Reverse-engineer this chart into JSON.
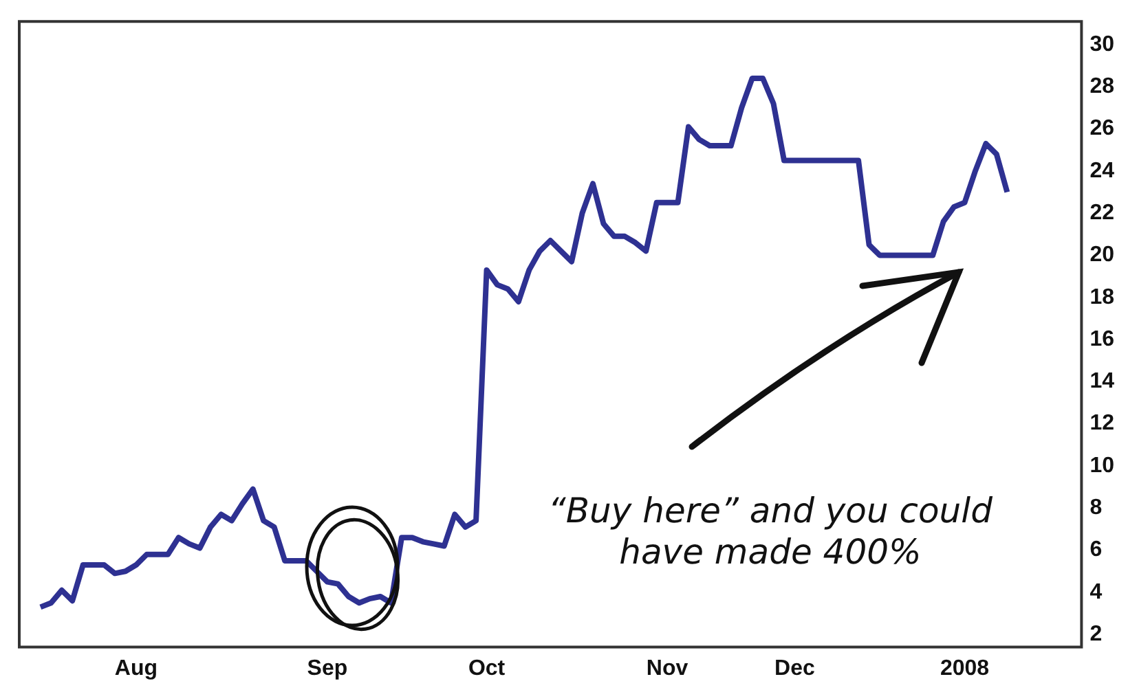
{
  "chart_data": {
    "type": "line",
    "categories": [
      null,
      null,
      null,
      null,
      null,
      null,
      null,
      null,
      null,
      null,
      null,
      "Aug",
      null,
      null,
      null,
      null,
      null,
      null,
      null,
      null,
      null,
      null,
      null,
      null,
      null,
      null,
      null,
      null,
      null,
      "Sep",
      null,
      null,
      null,
      null,
      null,
      null,
      null,
      null,
      null,
      null,
      null,
      null,
      null,
      null,
      "Oct",
      null,
      null,
      null,
      null,
      null,
      null,
      null,
      null,
      null,
      null,
      null,
      null,
      null,
      null,
      null,
      null,
      "Nov",
      null,
      null,
      null,
      null,
      null,
      null,
      null,
      null,
      null,
      null,
      null,
      "Dec",
      null,
      null,
      null,
      null,
      null,
      null,
      null,
      null,
      null,
      null,
      null,
      null,
      null,
      null,
      null,
      "2008",
      null,
      null,
      null,
      null,
      null,
      null,
      null,
      null,
      null,
      null,
      null
    ],
    "series": [
      {
        "color": "#2e3192",
        "values": [
          null,
          null,
          3.3,
          3.5,
          4.1,
          3.6,
          5.3,
          5.3,
          5.3,
          4.9,
          5.0,
          5.3,
          5.8,
          5.8,
          5.8,
          6.6,
          6.3,
          6.1,
          7.1,
          7.7,
          7.4,
          8.2,
          8.9,
          7.4,
          7.1,
          5.5,
          5.5,
          5.5,
          5.0,
          4.5,
          4.4,
          3.8,
          3.5,
          3.7,
          3.8,
          3.5,
          6.6,
          6.6,
          6.4,
          6.3,
          6.2,
          7.7,
          7.1,
          7.4,
          19.3,
          18.6,
          18.4,
          17.8,
          19.3,
          20.2,
          20.7,
          20.2,
          19.7,
          22.0,
          23.4,
          21.5,
          20.9,
          20.9,
          20.6,
          20.2,
          22.5,
          22.5,
          22.5,
          26.1,
          25.5,
          25.2,
          25.2,
          25.2,
          27.0,
          28.4,
          28.4,
          27.2,
          24.5,
          24.5,
          24.5,
          24.5,
          24.5,
          24.5,
          24.5,
          24.5,
          20.5,
          20.0,
          20.0,
          20.0,
          20.0,
          20.0,
          20.0,
          21.6,
          22.3,
          22.5,
          24.0,
          25.3,
          24.8,
          23.0,
          null,
          null,
          null,
          null,
          null,
          null,
          null
        ]
      }
    ],
    "ylim": [
      1.4,
      31.1
    ],
    "yticks": [
      2,
      4,
      6,
      8,
      10,
      12,
      14,
      16,
      18,
      20,
      22,
      24,
      26,
      28,
      30
    ],
    "annotations": [
      "“Buy here” and you could have made 400%"
    ],
    "grid": false,
    "legend": false,
    "marker": "none"
  }
}
